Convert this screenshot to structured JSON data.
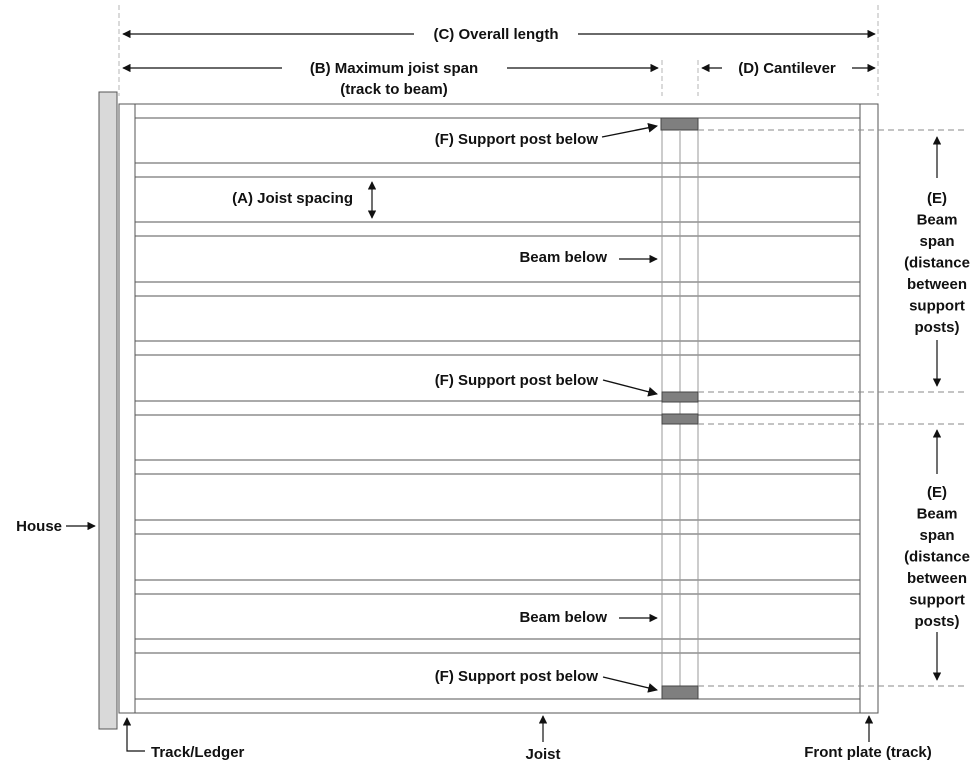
{
  "labels": {
    "overall_length": "(C) Overall length",
    "max_joist_span_line1": "(B) Maximum joist span",
    "max_joist_span_line2": "(track to beam)",
    "cantilever": "(D) Cantilever",
    "joist_spacing": "(A) Joist spacing",
    "support_post_top": "(F) Support post below",
    "support_post_mid": "(F) Support post below",
    "support_post_bottom": "(F) Support post below",
    "beam_below_upper": "Beam below",
    "beam_below_lower": "Beam below",
    "beam_span_upper": [
      "(E)",
      "Beam",
      "span",
      "(distance",
      "between",
      "support",
      "posts)"
    ],
    "beam_span_lower": [
      "(E)",
      "Beam",
      "span",
      "(distance",
      "between",
      "support",
      "posts)"
    ],
    "house": "House",
    "track_ledger": "Track/Ledger",
    "joist": "Joist",
    "front_plate": "Front plate (track)"
  },
  "colors": {
    "house_fill": "#d9d9d9",
    "post_fill": "#7f7f7f",
    "line": "#555555",
    "guide": "#aaaaaa",
    "text": "#111111"
  }
}
